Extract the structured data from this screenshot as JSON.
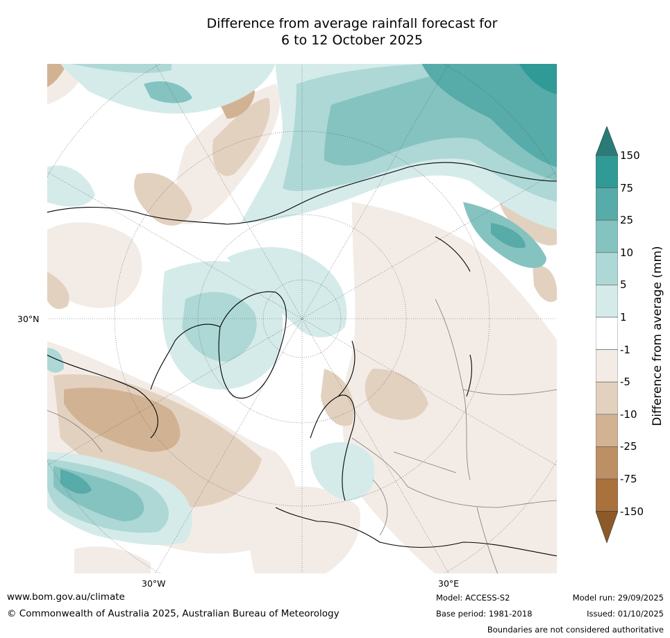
{
  "title": {
    "line1": "Difference from average rainfall forecast for",
    "line2": "6 to 12 October 2025"
  },
  "map": {
    "projection": "north-polar-stereographic",
    "lat_label": "30°N",
    "lon_labels": [
      "30°W",
      "30°E"
    ]
  },
  "colorbar": {
    "title": "Difference from average (mm)",
    "ticks": [
      "150",
      "75",
      "25",
      "10",
      "5",
      "1",
      "-1",
      "-5",
      "-10",
      "-25",
      "-75",
      "-150"
    ],
    "colors": {
      "over": "#2a7b78",
      "bins": [
        "#2f9a96",
        "#57aba9",
        "#85c3c1",
        "#add8d5",
        "#d4ebea",
        "#ffffff",
        "#f3ece6",
        "#e3d1c0",
        "#d1b394",
        "#bd8f65",
        "#a9713c"
      ],
      "under": "#8c5a28"
    }
  },
  "footer": {
    "website": "www.bom.gov.au/climate",
    "copyright": "© Commonwealth of Australia 2025, Australian Bureau of Meteorology",
    "model": "Model: ACCESS-S2",
    "base_period": "Base period: 1981-2018",
    "model_run": "Model run: 29/09/2025",
    "issued": "Issued: 01/10/2025",
    "disclaimer": "Boundaries are not considered authoritative"
  }
}
